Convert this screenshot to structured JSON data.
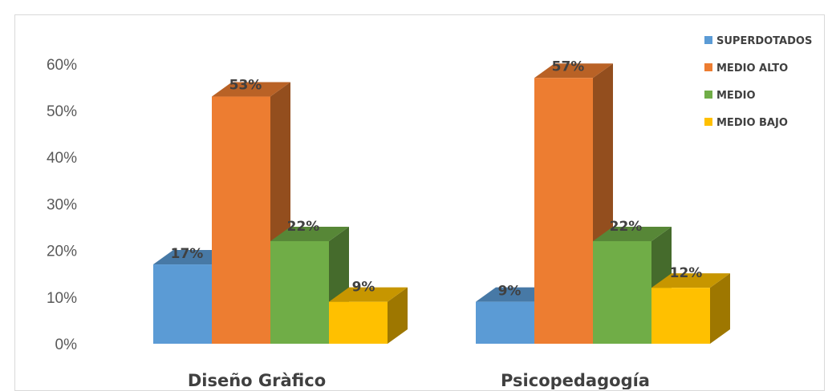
{
  "chart_data": {
    "type": "bar",
    "style": "3d-clustered-column",
    "categories": [
      "Diseño Gràfico",
      "Psicopedagogía"
    ],
    "series": [
      {
        "name": "SUPERDOTADOS",
        "values": [
          17,
          9
        ],
        "labels": [
          "17%",
          "9%"
        ],
        "color": "#5b9bd5"
      },
      {
        "name": "MEDIO ALTO",
        "values": [
          53,
          57
        ],
        "labels": [
          "53%",
          "57%"
        ],
        "color": "#ed7d31"
      },
      {
        "name": "MEDIO",
        "values": [
          22,
          22
        ],
        "labels": [
          "22%",
          "22%"
        ],
        "color": "#70ad47"
      },
      {
        "name": "MEDIO BAJO",
        "values": [
          9,
          12
        ],
        "labels": [
          "9%",
          "12%"
        ],
        "color": "#ffc000"
      }
    ],
    "ylim": [
      0,
      60
    ],
    "yticks": [
      0,
      10,
      20,
      30,
      40,
      50,
      60
    ],
    "ytick_labels": [
      "0%",
      "10%",
      "20%",
      "30%",
      "40%",
      "50%",
      "60%"
    ],
    "legend_position": "top-right",
    "grid": false
  }
}
